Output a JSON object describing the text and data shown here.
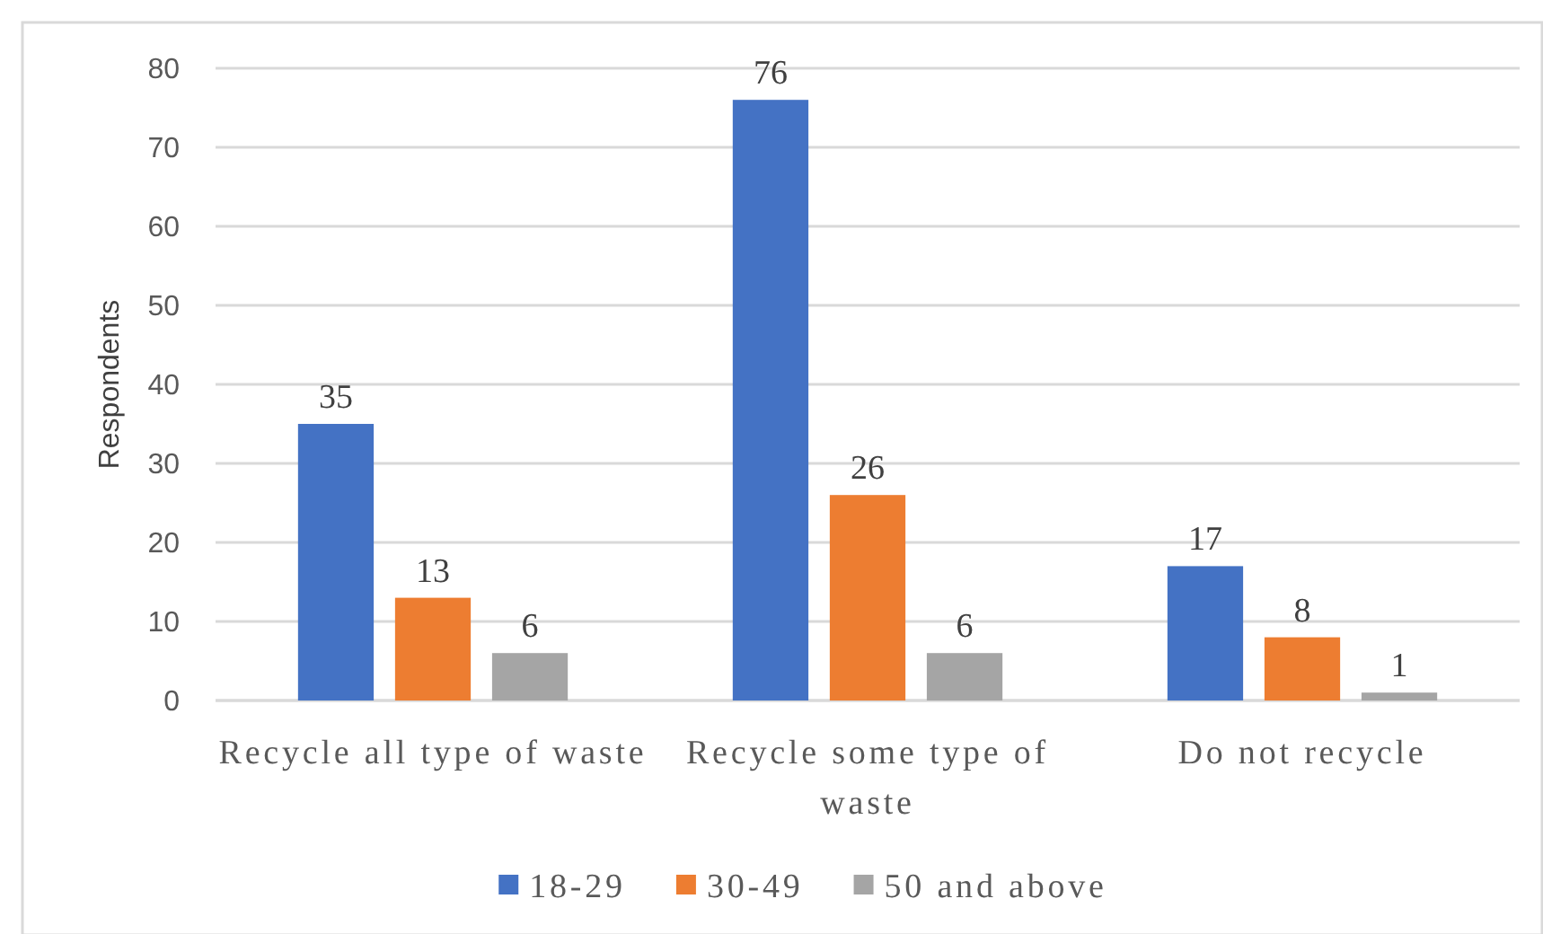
{
  "chart_data": {
    "type": "bar",
    "ylabel": "Respondents",
    "categories": [
      "Recycle all type of waste",
      "Recycle some type of waste",
      "Do not recycle"
    ],
    "series": [
      {
        "name": "18-29",
        "color": "#4472c4",
        "values": [
          35,
          76,
          17
        ]
      },
      {
        "name": "30-49",
        "color": "#ed7d31",
        "values": [
          13,
          26,
          8
        ]
      },
      {
        "name": "50 and above",
        "color": "#a5a5a5",
        "values": [
          6,
          6,
          1
        ]
      }
    ],
    "ylim": [
      0,
      80
    ],
    "yticks": [
      0,
      10,
      20,
      30,
      40,
      50,
      60,
      70,
      80
    ],
    "grid": "y",
    "legend": "bottom",
    "data_labels": true
  }
}
